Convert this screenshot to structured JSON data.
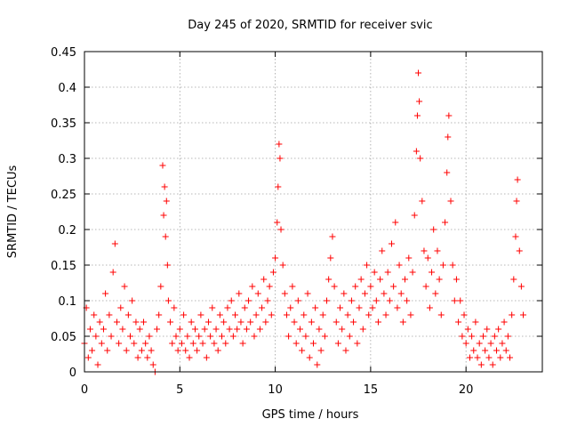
{
  "chart_data": {
    "type": "scatter",
    "title": "Day 245 of 2020, SRMTID for receiver svic",
    "xlabel": "GPS time / hours",
    "ylabel": "SRMTID / TECUs",
    "xlim": [
      0,
      24
    ],
    "ylim": [
      0,
      0.45
    ],
    "xticks": [
      0,
      5,
      10,
      15,
      20
    ],
    "xtick_labels": [
      "0",
      "5",
      "10",
      "15",
      "20"
    ],
    "yticks": [
      0,
      0.05,
      0.1,
      0.15,
      0.2,
      0.25,
      0.3,
      0.35,
      0.4,
      0.45
    ],
    "ytick_labels": [
      "0",
      "0.05",
      "0.1",
      "0.15",
      "0.2",
      "0.25",
      "0.3",
      "0.35",
      "0.4",
      "0.45"
    ],
    "grid": true,
    "marker": "+",
    "color": "#ff0000",
    "series": [
      {
        "name": "SRMTID",
        "points": [
          [
            0.0,
            0.04
          ],
          [
            0.1,
            0.09
          ],
          [
            0.2,
            0.02
          ],
          [
            0.3,
            0.06
          ],
          [
            0.4,
            0.03
          ],
          [
            0.5,
            0.08
          ],
          [
            0.6,
            0.05
          ],
          [
            0.7,
            0.01
          ],
          [
            0.8,
            0.07
          ],
          [
            0.9,
            0.04
          ],
          [
            1.0,
            0.06
          ],
          [
            1.1,
            0.11
          ],
          [
            1.2,
            0.03
          ],
          [
            1.3,
            0.08
          ],
          [
            1.4,
            0.05
          ],
          [
            1.5,
            0.14
          ],
          [
            1.6,
            0.18
          ],
          [
            1.7,
            0.07
          ],
          [
            1.8,
            0.04
          ],
          [
            1.9,
            0.09
          ],
          [
            2.0,
            0.06
          ],
          [
            2.1,
            0.12
          ],
          [
            2.2,
            0.03
          ],
          [
            2.3,
            0.08
          ],
          [
            2.4,
            0.05
          ],
          [
            2.5,
            0.1
          ],
          [
            2.6,
            0.04
          ],
          [
            2.7,
            0.07
          ],
          [
            2.8,
            0.02
          ],
          [
            2.9,
            0.06
          ],
          [
            3.0,
            0.03
          ],
          [
            3.1,
            0.07
          ],
          [
            3.2,
            0.04
          ],
          [
            3.3,
            0.02
          ],
          [
            3.4,
            0.05
          ],
          [
            3.5,
            0.03
          ],
          [
            3.6,
            0.01
          ],
          [
            3.7,
            0.0
          ],
          [
            3.8,
            0.06
          ],
          [
            3.9,
            0.08
          ],
          [
            4.0,
            0.12
          ],
          [
            4.1,
            0.29
          ],
          [
            4.15,
            0.22
          ],
          [
            4.2,
            0.26
          ],
          [
            4.25,
            0.19
          ],
          [
            4.3,
            0.24
          ],
          [
            4.35,
            0.15
          ],
          [
            4.4,
            0.1
          ],
          [
            4.5,
            0.07
          ],
          [
            4.6,
            0.04
          ],
          [
            4.7,
            0.09
          ],
          [
            4.8,
            0.05
          ],
          [
            4.9,
            0.03
          ],
          [
            5.0,
            0.06
          ],
          [
            5.1,
            0.04
          ],
          [
            5.2,
            0.08
          ],
          [
            5.3,
            0.03
          ],
          [
            5.4,
            0.05
          ],
          [
            5.5,
            0.02
          ],
          [
            5.6,
            0.07
          ],
          [
            5.7,
            0.04
          ],
          [
            5.8,
            0.06
          ],
          [
            5.9,
            0.03
          ],
          [
            6.0,
            0.05
          ],
          [
            6.1,
            0.08
          ],
          [
            6.2,
            0.04
          ],
          [
            6.3,
            0.06
          ],
          [
            6.4,
            0.02
          ],
          [
            6.5,
            0.07
          ],
          [
            6.6,
            0.05
          ],
          [
            6.7,
            0.09
          ],
          [
            6.8,
            0.04
          ],
          [
            6.9,
            0.06
          ],
          [
            7.0,
            0.03
          ],
          [
            7.1,
            0.08
          ],
          [
            7.2,
            0.05
          ],
          [
            7.3,
            0.07
          ],
          [
            7.4,
            0.04
          ],
          [
            7.5,
            0.09
          ],
          [
            7.6,
            0.06
          ],
          [
            7.7,
            0.1
          ],
          [
            7.8,
            0.05
          ],
          [
            7.9,
            0.08
          ],
          [
            8.0,
            0.06
          ],
          [
            8.1,
            0.11
          ],
          [
            8.2,
            0.07
          ],
          [
            8.3,
            0.04
          ],
          [
            8.4,
            0.09
          ],
          [
            8.5,
            0.06
          ],
          [
            8.6,
            0.1
          ],
          [
            8.7,
            0.07
          ],
          [
            8.8,
            0.12
          ],
          [
            8.9,
            0.05
          ],
          [
            9.0,
            0.08
          ],
          [
            9.1,
            0.11
          ],
          [
            9.2,
            0.06
          ],
          [
            9.3,
            0.09
          ],
          [
            9.4,
            0.13
          ],
          [
            9.5,
            0.07
          ],
          [
            9.6,
            0.1
          ],
          [
            9.7,
            0.12
          ],
          [
            9.8,
            0.08
          ],
          [
            9.9,
            0.14
          ],
          [
            10.0,
            0.16
          ],
          [
            10.1,
            0.21
          ],
          [
            10.15,
            0.26
          ],
          [
            10.2,
            0.32
          ],
          [
            10.25,
            0.3
          ],
          [
            10.3,
            0.2
          ],
          [
            10.4,
            0.15
          ],
          [
            10.5,
            0.11
          ],
          [
            10.6,
            0.08
          ],
          [
            10.7,
            0.05
          ],
          [
            10.8,
            0.09
          ],
          [
            10.9,
            0.12
          ],
          [
            11.0,
            0.07
          ],
          [
            11.1,
            0.04
          ],
          [
            11.2,
            0.1
          ],
          [
            11.3,
            0.06
          ],
          [
            11.4,
            0.03
          ],
          [
            11.5,
            0.08
          ],
          [
            11.6,
            0.05
          ],
          [
            11.7,
            0.11
          ],
          [
            11.8,
            0.02
          ],
          [
            11.9,
            0.07
          ],
          [
            12.0,
            0.04
          ],
          [
            12.1,
            0.09
          ],
          [
            12.2,
            0.01
          ],
          [
            12.3,
            0.06
          ],
          [
            12.4,
            0.03
          ],
          [
            12.5,
            0.08
          ],
          [
            12.6,
            0.05
          ],
          [
            12.7,
            0.1
          ],
          [
            12.8,
            0.13
          ],
          [
            12.9,
            0.16
          ],
          [
            13.0,
            0.19
          ],
          [
            13.1,
            0.12
          ],
          [
            13.2,
            0.07
          ],
          [
            13.3,
            0.04
          ],
          [
            13.4,
            0.09
          ],
          [
            13.5,
            0.06
          ],
          [
            13.6,
            0.11
          ],
          [
            13.7,
            0.03
          ],
          [
            13.8,
            0.08
          ],
          [
            13.9,
            0.05
          ],
          [
            14.0,
            0.1
          ],
          [
            14.1,
            0.07
          ],
          [
            14.2,
            0.12
          ],
          [
            14.3,
            0.04
          ],
          [
            14.4,
            0.09
          ],
          [
            14.5,
            0.13
          ],
          [
            14.6,
            0.06
          ],
          [
            14.7,
            0.11
          ],
          [
            14.8,
            0.15
          ],
          [
            14.9,
            0.08
          ],
          [
            15.0,
            0.12
          ],
          [
            15.1,
            0.09
          ],
          [
            15.2,
            0.14
          ],
          [
            15.3,
            0.1
          ],
          [
            15.4,
            0.07
          ],
          [
            15.5,
            0.13
          ],
          [
            15.6,
            0.17
          ],
          [
            15.7,
            0.11
          ],
          [
            15.8,
            0.08
          ],
          [
            15.9,
            0.14
          ],
          [
            16.0,
            0.1
          ],
          [
            16.1,
            0.18
          ],
          [
            16.2,
            0.12
          ],
          [
            16.3,
            0.21
          ],
          [
            16.4,
            0.09
          ],
          [
            16.5,
            0.15
          ],
          [
            16.6,
            0.11
          ],
          [
            16.7,
            0.07
          ],
          [
            16.8,
            0.13
          ],
          [
            16.9,
            0.1
          ],
          [
            17.0,
            0.16
          ],
          [
            17.1,
            0.08
          ],
          [
            17.2,
            0.14
          ],
          [
            17.3,
            0.22
          ],
          [
            17.4,
            0.31
          ],
          [
            17.45,
            0.36
          ],
          [
            17.5,
            0.42
          ],
          [
            17.55,
            0.38
          ],
          [
            17.6,
            0.3
          ],
          [
            17.7,
            0.24
          ],
          [
            17.8,
            0.17
          ],
          [
            17.9,
            0.12
          ],
          [
            18.0,
            0.16
          ],
          [
            18.1,
            0.09
          ],
          [
            18.2,
            0.14
          ],
          [
            18.3,
            0.2
          ],
          [
            18.4,
            0.11
          ],
          [
            18.5,
            0.17
          ],
          [
            18.6,
            0.13
          ],
          [
            18.7,
            0.08
          ],
          [
            18.8,
            0.15
          ],
          [
            18.9,
            0.21
          ],
          [
            19.0,
            0.28
          ],
          [
            19.05,
            0.33
          ],
          [
            19.1,
            0.36
          ],
          [
            19.2,
            0.24
          ],
          [
            19.3,
            0.15
          ],
          [
            19.4,
            0.1
          ],
          [
            19.5,
            0.13
          ],
          [
            19.6,
            0.07
          ],
          [
            19.7,
            0.1
          ],
          [
            19.8,
            0.05
          ],
          [
            19.9,
            0.08
          ],
          [
            20.0,
            0.04
          ],
          [
            20.1,
            0.06
          ],
          [
            20.2,
            0.02
          ],
          [
            20.3,
            0.05
          ],
          [
            20.4,
            0.03
          ],
          [
            20.5,
            0.07
          ],
          [
            20.6,
            0.02
          ],
          [
            20.7,
            0.04
          ],
          [
            20.8,
            0.01
          ],
          [
            20.9,
            0.05
          ],
          [
            21.0,
            0.03
          ],
          [
            21.1,
            0.06
          ],
          [
            21.2,
            0.02
          ],
          [
            21.3,
            0.04
          ],
          [
            21.4,
            0.01
          ],
          [
            21.5,
            0.05
          ],
          [
            21.6,
            0.03
          ],
          [
            21.7,
            0.06
          ],
          [
            21.8,
            0.02
          ],
          [
            21.9,
            0.04
          ],
          [
            22.0,
            0.07
          ],
          [
            22.1,
            0.03
          ],
          [
            22.2,
            0.05
          ],
          [
            22.3,
            0.02
          ],
          [
            22.4,
            0.08
          ],
          [
            22.5,
            0.13
          ],
          [
            22.6,
            0.19
          ],
          [
            22.65,
            0.24
          ],
          [
            22.7,
            0.27
          ],
          [
            22.8,
            0.17
          ],
          [
            22.9,
            0.12
          ],
          [
            23.0,
            0.08
          ]
        ]
      }
    ]
  }
}
